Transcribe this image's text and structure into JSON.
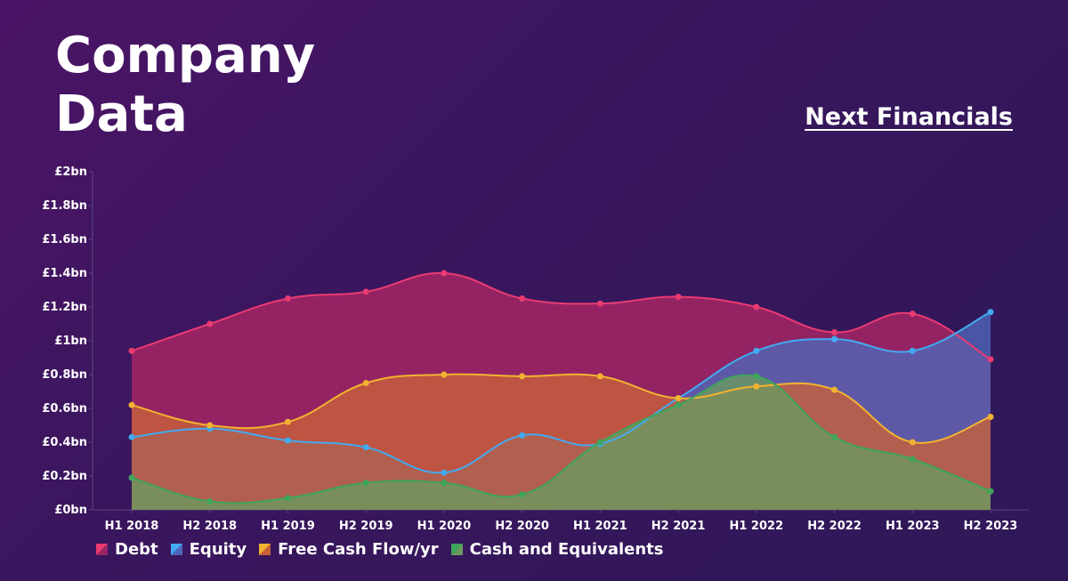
{
  "header": {
    "title_line1": "Company",
    "title_line2": "Data",
    "subtitle": "Next Financials"
  },
  "chart_data": {
    "type": "area",
    "title": "Company Data",
    "subtitle": "Next Financials",
    "categories": [
      "H1 2018",
      "H2 2018",
      "H1 2019",
      "H2 2019",
      "H1 2020",
      "H2 2020",
      "H1 2021",
      "H2 2021",
      "H1 2022",
      "H2 2022",
      "H1 2023",
      "H2 2023"
    ],
    "yticks": [
      "£0bn",
      "£0.2bn",
      "£0.4bn",
      "£0.6bn",
      "£0.8bn",
      "£1bn",
      "£1.2bn",
      "£1.4bn",
      "£1.6bn",
      "£1.8bn",
      "£2bn"
    ],
    "ylim": [
      0,
      2
    ],
    "yunit": "£bn",
    "legend_position": "bottom-left",
    "series": [
      {
        "name": "Debt",
        "line": "#ea3a72",
        "fill": "#9a2464",
        "values": [
          0.94,
          1.1,
          1.25,
          1.29,
          1.4,
          1.25,
          1.22,
          1.26,
          1.2,
          1.05,
          1.16,
          0.89
        ]
      },
      {
        "name": "Equity",
        "line": "#42aaf0",
        "fill": "#4f66b8",
        "values": [
          0.43,
          0.48,
          0.41,
          0.37,
          0.22,
          0.44,
          0.39,
          0.66,
          0.94,
          1.01,
          0.94,
          1.17
        ]
      },
      {
        "name": "Free Cash Flow/yr",
        "line": "#f2b330",
        "fill": "#c8603a",
        "values": [
          0.62,
          0.5,
          0.52,
          0.75,
          0.8,
          0.79,
          0.79,
          0.66,
          0.73,
          0.71,
          0.4,
          0.55
        ]
      },
      {
        "name": "Cash and Equivalents",
        "line": "#3ea55c",
        "fill": "#6a9a5e",
        "values": [
          0.19,
          0.05,
          0.07,
          0.16,
          0.16,
          0.09,
          0.4,
          0.62,
          0.79,
          0.43,
          0.3,
          0.11
        ]
      }
    ]
  }
}
